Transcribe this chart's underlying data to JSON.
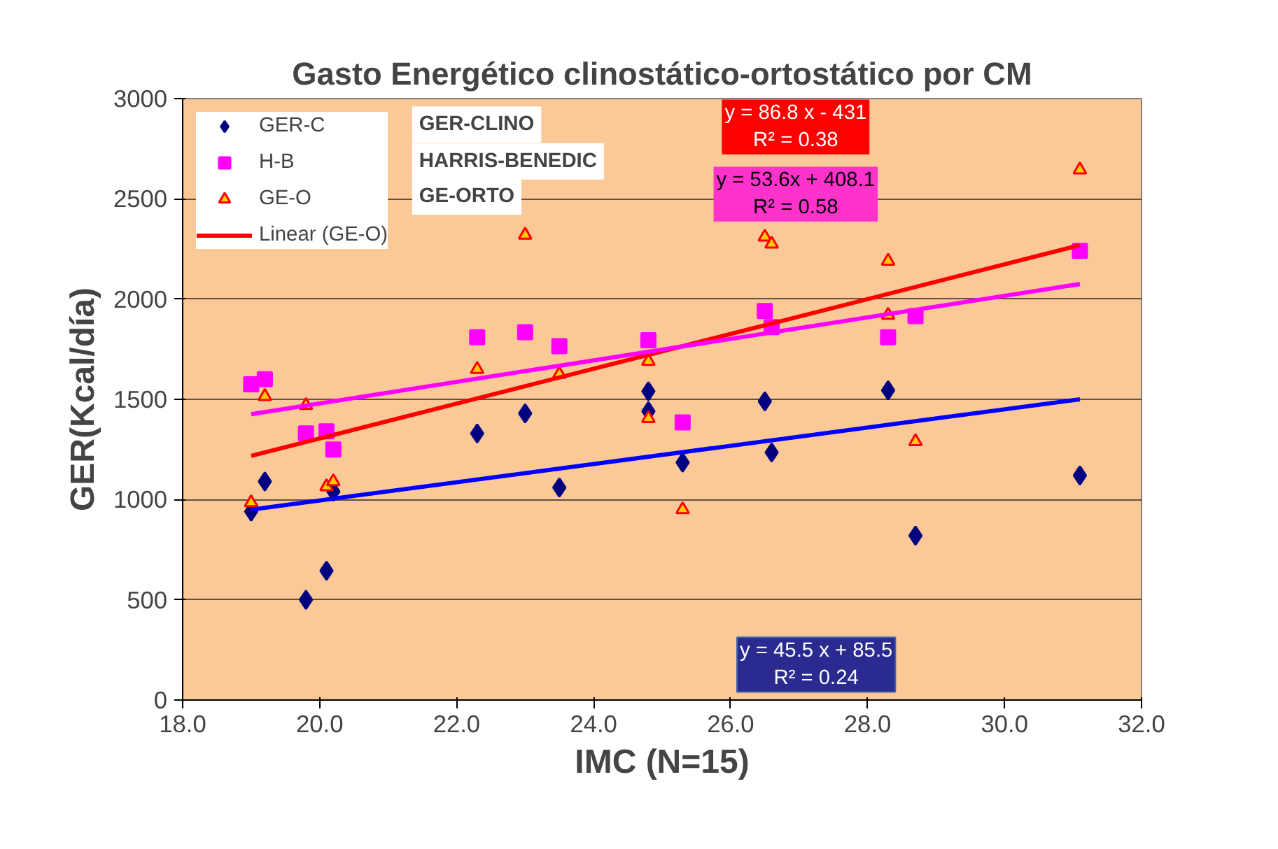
{
  "chart_data": {
    "type": "scatter",
    "title": "Gasto Energético clinostático-ortostático por CM",
    "xlabel": "IMC (N=15)",
    "ylabel": "GER(Kcal/día)",
    "xlim": [
      18,
      32
    ],
    "xticks": [
      {
        "value": 18,
        "label": "18.0"
      },
      {
        "value": 20,
        "label": "20.0"
      },
      {
        "value": 22,
        "label": "22.0"
      },
      {
        "value": 24,
        "label": "24.0"
      },
      {
        "value": 26,
        "label": "26.0"
      },
      {
        "value": 28,
        "label": "28.0"
      },
      {
        "value": 30,
        "label": "30.0"
      },
      {
        "value": 32,
        "label": "32.0"
      }
    ],
    "ylim": [
      0,
      3000
    ],
    "yticks": [
      0,
      500,
      1000,
      1500,
      2000,
      2500,
      3000
    ],
    "grid": "y",
    "legend": "top left",
    "series": [
      {
        "name": "GER-C",
        "color": "#000080",
        "marker": "diamond",
        "x": [
          19.0,
          19.2,
          19.8,
          20.1,
          20.2,
          22.3,
          23.0,
          23.5,
          24.8,
          24.8,
          25.3,
          26.5,
          26.6,
          28.3,
          28.7,
          31.1
        ],
        "values": [
          940,
          1090,
          500,
          645,
          1040,
          1330,
          1430,
          1060,
          1540,
          1440,
          1185,
          1490,
          1235,
          1545,
          820,
          1120
        ]
      },
      {
        "name": "H-B",
        "color": "#ff00ff",
        "marker": "square",
        "x": [
          19.0,
          19.2,
          19.8,
          20.1,
          20.2,
          22.3,
          23.0,
          23.5,
          24.8,
          25.3,
          26.5,
          26.6,
          28.3,
          28.7,
          31.1
        ],
        "values": [
          1575,
          1600,
          1330,
          1340,
          1250,
          1810,
          1835,
          1765,
          1795,
          1385,
          1940,
          1860,
          1810,
          1915,
          2240
        ]
      },
      {
        "name": "GE-O",
        "color": "#ff0000",
        "marker": "triangle",
        "x": [
          19.0,
          19.2,
          19.8,
          20.1,
          20.2,
          22.3,
          23.0,
          23.5,
          24.8,
          24.8,
          25.3,
          26.5,
          26.6,
          28.3,
          28.3,
          28.7,
          31.1
        ],
        "values": [
          985,
          1515,
          1470,
          1065,
          1090,
          1650,
          2320,
          1625,
          1690,
          1405,
          950,
          2310,
          2275,
          2190,
          1920,
          1290,
          2645
        ]
      },
      {
        "name": "Linear (GE-O)",
        "type": "line",
        "color": "#ff0000",
        "x": [
          19.0,
          31.1
        ],
        "values": [
          1218,
          2269
        ]
      },
      {
        "type": "line",
        "color": "#ff00ff",
        "x": [
          19.0,
          31.1
        ],
        "values": [
          1426,
          2075
        ]
      },
      {
        "type": "line",
        "color": "#0000ff",
        "x": [
          19.0,
          31.1
        ],
        "values": [
          950,
          1500
        ]
      }
    ],
    "annotations": [
      "GER-CLINO",
      "HARRIS-BENEDIC",
      "GE-ORTO",
      "y = 86.8 x - 431\nR² = 0.38",
      "y = 53.6x + 408.1\nR² = 0.58",
      "y = 45.5 x + 85.5\nR² = 0.24"
    ]
  }
}
